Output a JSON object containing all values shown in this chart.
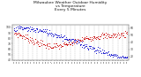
{
  "title": "Milwaukee Weather Outdoor Humidity\nvs Temperature\nEvery 5 Minutes",
  "title_fontsize": 3.2,
  "bg_color": "#ffffff",
  "grid_color": "#bbbbbb",
  "red_color": "#cc0000",
  "blue_color": "#0000cc",
  "n_points": 200,
  "ylim_left": [
    40,
    105
  ],
  "ylim_right": [
    15,
    65
  ],
  "yticks_left": [
    40,
    50,
    60,
    70,
    80,
    90,
    100
  ],
  "yticks_right": [
    20,
    30,
    40,
    50,
    60
  ],
  "dot_size": 0.4
}
